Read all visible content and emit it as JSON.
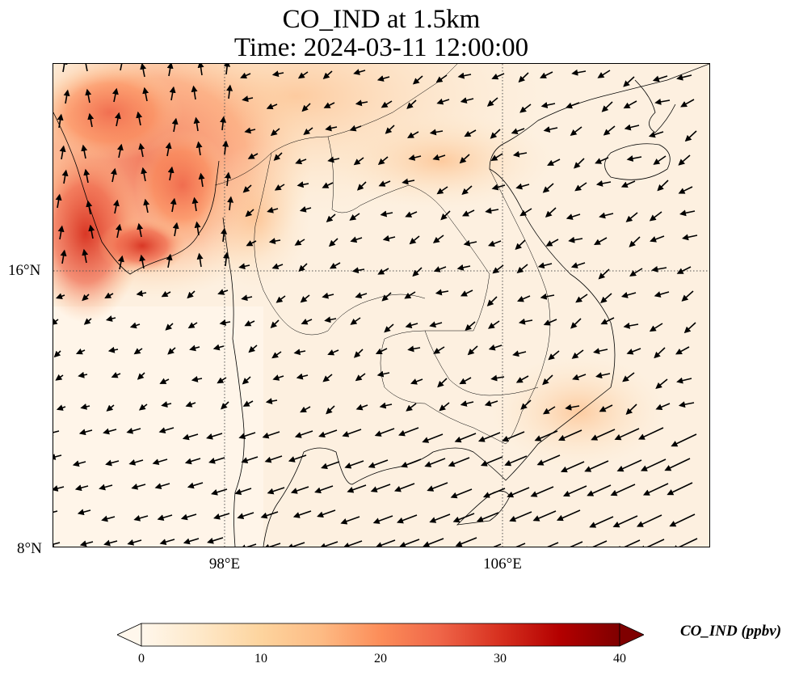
{
  "title": {
    "line1": "CO_IND at 1.5km",
    "line2": "Time: 2024-03-11 12:00:00"
  },
  "map": {
    "lat_labels": [
      "16°N",
      "8°N"
    ],
    "lon_labels": [
      "98°E",
      "106°E"
    ],
    "gridlines": "dotted",
    "features": [
      "coastlines",
      "country-borders",
      "wind-vectors",
      "CO concentration field"
    ]
  },
  "colorbar": {
    "label": "CO_IND (ppbv)",
    "ticks": [
      "0",
      "10",
      "20",
      "30",
      "40"
    ],
    "range": [
      0,
      40
    ],
    "extend": "max",
    "colormap": "OrRd",
    "colors": [
      "#fff7ec",
      "#fee8c8",
      "#fdd49e",
      "#fdbb84",
      "#fc8d59",
      "#ef6548",
      "#d7301f",
      "#b30000",
      "#7f0000"
    ]
  }
}
